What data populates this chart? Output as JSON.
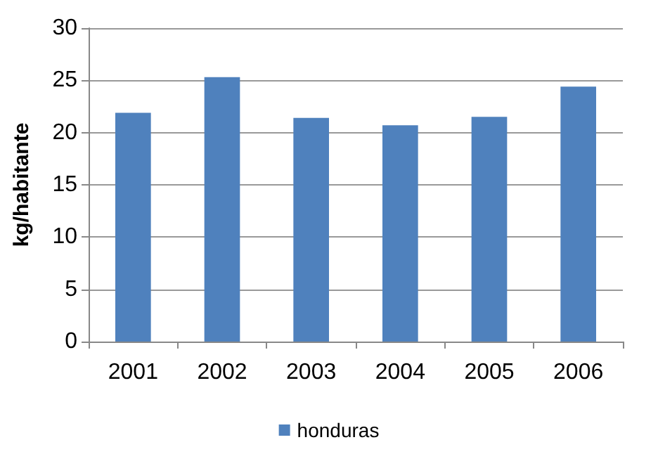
{
  "chart_data": {
    "type": "bar",
    "ylabel": "kg/habitante",
    "categories": [
      "2001",
      "2002",
      "2003",
      "2004",
      "2005",
      "2006"
    ],
    "series": [
      {
        "name": "honduras",
        "color": "#4f81bd",
        "values": [
          21.9,
          25.3,
          21.4,
          20.7,
          21.5,
          24.4
        ]
      }
    ],
    "ylim": [
      0,
      30
    ],
    "yticks": [
      0,
      5,
      10,
      15,
      20,
      25,
      30
    ],
    "grid": "y",
    "legend": "bottom"
  }
}
